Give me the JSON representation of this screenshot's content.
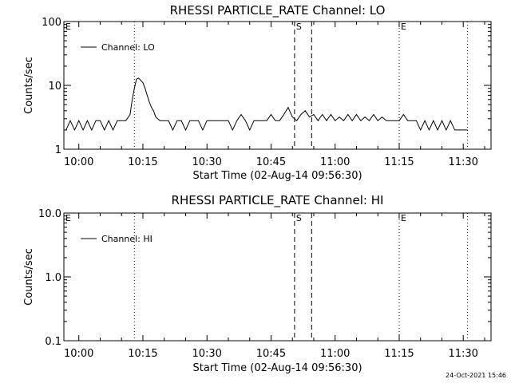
{
  "chart_data": [
    {
      "type": "line",
      "title": "RHESSI PARTICLE_RATE Channel: LO",
      "xlabel": "Start Time (02-Aug-14 09:56:30)",
      "ylabel": "Counts/sec",
      "yscale": "log",
      "ylim": [
        1,
        100
      ],
      "xlim": [
        "09:56:30",
        "11:36:30"
      ],
      "x_ticks": [
        "10:00",
        "10:15",
        "10:30",
        "10:45",
        "11:00",
        "11:15",
        "11:30"
      ],
      "y_ticks": [
        "1",
        "10",
        "100"
      ],
      "legend": "top-left",
      "grid": false,
      "series": [
        {
          "name": "Channel: LO",
          "x": [
            "09:57:00",
            "09:58:00",
            "09:59:00",
            "10:00:00",
            "10:01:00",
            "10:02:00",
            "10:03:00",
            "10:04:00",
            "10:05:00",
            "10:06:00",
            "10:07:00",
            "10:08:00",
            "10:09:00",
            "10:10:00",
            "10:11:00",
            "10:12:00",
            "10:12:30",
            "10:13:00",
            "10:13:30",
            "10:14:00",
            "10:14:30",
            "10:15:00",
            "10:15:30",
            "10:16:00",
            "10:16:30",
            "10:17:00",
            "10:17:30",
            "10:18:00",
            "10:19:00",
            "10:20:00",
            "10:21:00",
            "10:22:00",
            "10:23:00",
            "10:24:00",
            "10:25:00",
            "10:26:00",
            "10:27:00",
            "10:28:00",
            "10:29:00",
            "10:30:00",
            "10:31:00",
            "10:32:00",
            "10:33:00",
            "10:34:00",
            "10:35:00",
            "10:36:00",
            "10:37:00",
            "10:38:00",
            "10:39:00",
            "10:40:00",
            "10:41:00",
            "10:42:00",
            "10:43:00",
            "10:44:00",
            "10:45:00",
            "10:46:00",
            "10:47:00",
            "10:48:00",
            "10:49:00",
            "10:50:00",
            "10:51:00",
            "10:52:00",
            "10:53:00",
            "10:54:00",
            "10:55:00",
            "10:56:00",
            "10:57:00",
            "10:58:00",
            "10:59:00",
            "11:00:00",
            "11:01:00",
            "11:02:00",
            "11:03:00",
            "11:04:00",
            "11:05:00",
            "11:06:00",
            "11:07:00",
            "11:08:00",
            "11:09:00",
            "11:10:00",
            "11:11:00",
            "11:12:00",
            "11:13:00",
            "11:14:00",
            "11:15:00",
            "11:16:00",
            "11:17:00",
            "11:18:00",
            "11:19:00",
            "11:20:00",
            "11:21:00",
            "11:22:00",
            "11:23:00",
            "11:24:00",
            "11:25:00",
            "11:26:00",
            "11:27:00",
            "11:28:00",
            "11:29:00",
            "11:30:00",
            "11:31:00"
          ],
          "y": [
            2,
            2.8,
            2,
            2.8,
            2,
            2.8,
            2,
            2.8,
            2.8,
            2,
            2.8,
            2,
            2.8,
            2.8,
            2.8,
            3.5,
            6,
            9,
            12.5,
            13,
            12,
            11,
            9,
            7,
            5.5,
            4.5,
            4,
            3.2,
            2.8,
            2.8,
            2.8,
            2,
            2.8,
            2.8,
            2,
            2.8,
            2.8,
            2.8,
            2,
            2.8,
            2.8,
            2.8,
            2.8,
            2.8,
            2.8,
            2,
            2.8,
            3.5,
            2.8,
            2,
            2.8,
            2.8,
            2.8,
            2.8,
            3.5,
            2.8,
            2.8,
            3.5,
            4.5,
            3.2,
            2.8,
            3.5,
            4,
            3.2,
            3.5,
            2.8,
            3.5,
            2.8,
            3.5,
            2.8,
            3.2,
            2.8,
            3.5,
            2.8,
            3.5,
            2.8,
            3.2,
            2.8,
            3.5,
            2.8,
            3.2,
            2.8,
            2.8,
            2.8,
            2.8,
            3.5,
            2.8,
            2.8,
            2.8,
            2,
            2.8,
            2,
            2.8,
            2,
            2.8,
            2,
            2.8,
            2,
            2,
            2,
            2
          ]
        }
      ],
      "markers": [
        {
          "label": "E",
          "time": "09:56:30"
        },
        {
          "label": "S",
          "time": "10:50:30"
        },
        {
          "label": "E",
          "time": "11:15:00"
        }
      ],
      "dotted_lines": [
        "10:13:00",
        "11:15:00",
        "11:31:00"
      ],
      "dashed_lines": [
        "10:50:30",
        "10:54:30"
      ]
    },
    {
      "type": "line",
      "title": "RHESSI PARTICLE_RATE Channel: HI",
      "xlabel": "Start Time (02-Aug-14 09:56:30)",
      "ylabel": "Counts/sec",
      "yscale": "log",
      "ylim": [
        0.1,
        10
      ],
      "xlim": [
        "09:56:30",
        "11:36:30"
      ],
      "x_ticks": [
        "10:00",
        "10:15",
        "10:30",
        "10:45",
        "11:00",
        "11:15",
        "11:30"
      ],
      "y_ticks": [
        "0.1",
        "1.0",
        "10.0"
      ],
      "legend": "top-left",
      "grid": false,
      "series": [
        {
          "name": "Channel: HI",
          "x": [],
          "y": []
        }
      ],
      "markers": [
        {
          "label": "E",
          "time": "09:56:30"
        },
        {
          "label": "S",
          "time": "10:50:30"
        },
        {
          "label": "E",
          "time": "11:15:00"
        }
      ],
      "dotted_lines": [
        "10:13:00",
        "11:15:00",
        "11:31:00"
      ],
      "dashed_lines": [
        "10:50:30",
        "10:54:30"
      ]
    }
  ],
  "footer": {
    "timestamp": "24-Oct-2021 15:46"
  }
}
